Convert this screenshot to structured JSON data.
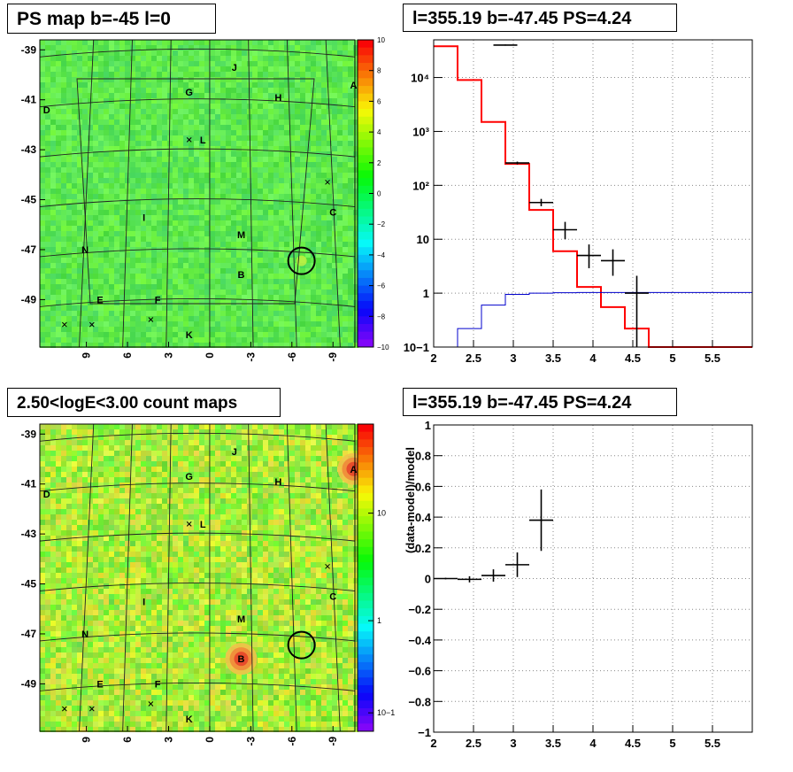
{
  "panels": {
    "ps_map_title": "PS map b=-45 l=0",
    "count_map_title": "2.50<logE<3.00 count maps",
    "spectrum_title": "l=355.19 b=-47.45 PS=4.24",
    "residual_title": "l=355.19 b=-47.45 PS=4.24"
  },
  "colors": {
    "map_background": "#5fe35a",
    "model_line": "#ff0000",
    "background_line": "#0000cc",
    "data_points": "#000000"
  },
  "chart_data": [
    {
      "type": "heatmap",
      "name": "ps_map",
      "title": "PS map b=-45 l=0",
      "x_ticks": [
        "9",
        "6",
        "3",
        "0",
        "-3",
        "-6",
        "-9"
      ],
      "y_ticks": [
        "-39",
        "-41",
        "-43",
        "-45",
        "-47",
        "-49"
      ],
      "colorbar_ticks": [
        "10",
        "8",
        "6",
        "4",
        "2",
        "0",
        "−2",
        "−4",
        "−6",
        "−8",
        "−10"
      ],
      "colorbar_range": [
        -10,
        10
      ],
      "source_labels": [
        {
          "text": "J",
          "l": -1.8,
          "b": -39.7
        },
        {
          "text": "G",
          "l": 1.5,
          "b": -40.7
        },
        {
          "text": "H",
          "l": -5.0,
          "b": -40.9
        },
        {
          "text": "A",
          "l": -10.5,
          "b": -40.4
        },
        {
          "text": "D",
          "l": 11.9,
          "b": -41.4
        },
        {
          "text": "L",
          "l": 0.5,
          "b": -42.6
        },
        {
          "text": "C",
          "l": -9.0,
          "b": -45.5
        },
        {
          "text": "I",
          "l": 4.8,
          "b": -45.7
        },
        {
          "text": "M",
          "l": -2.3,
          "b": -46.4
        },
        {
          "text": "N",
          "l": 9.1,
          "b": -47.0
        },
        {
          "text": "B",
          "l": -2.3,
          "b": -48.0
        },
        {
          "text": "E",
          "l": 8.0,
          "b": -49.0
        },
        {
          "text": "F",
          "l": 3.8,
          "b": -49.0
        },
        {
          "text": "K",
          "l": 1.5,
          "b": -50.4
        }
      ],
      "crosses": [
        {
          "l": 1.5,
          "b": -42.6
        },
        {
          "l": -8.6,
          "b": -44.3
        },
        {
          "l": 10.6,
          "b": -50.0
        },
        {
          "l": 8.6,
          "b": -50.0
        },
        {
          "l": 4.3,
          "b": -49.8
        }
      ],
      "circle": {
        "l": -6.7,
        "b": -47.45,
        "radius": 0.55
      }
    },
    {
      "type": "heatmap",
      "name": "count_map",
      "title": "2.50<logE<3.00 count maps",
      "x_ticks": [
        "9",
        "6",
        "3",
        "0",
        "-3",
        "-6",
        "-9"
      ],
      "y_ticks": [
        "-39",
        "-41",
        "-43",
        "-45",
        "-47",
        "-49"
      ],
      "colorbar_ticks": [
        "10",
        "1",
        "10−1"
      ],
      "colorbar_scale": "log",
      "source_labels": [
        {
          "text": "J",
          "l": -1.8,
          "b": -39.7
        },
        {
          "text": "G",
          "l": 1.5,
          "b": -40.7
        },
        {
          "text": "H",
          "l": -5.0,
          "b": -40.9
        },
        {
          "text": "A",
          "l": -10.5,
          "b": -40.4
        },
        {
          "text": "D",
          "l": 11.9,
          "b": -41.4
        },
        {
          "text": "L",
          "l": 0.5,
          "b": -42.6
        },
        {
          "text": "C",
          "l": -9.0,
          "b": -45.5
        },
        {
          "text": "I",
          "l": 4.8,
          "b": -45.7
        },
        {
          "text": "M",
          "l": -2.3,
          "b": -46.4
        },
        {
          "text": "N",
          "l": 9.1,
          "b": -47.0
        },
        {
          "text": "B",
          "l": -2.3,
          "b": -48.0
        },
        {
          "text": "E",
          "l": 8.0,
          "b": -49.0
        },
        {
          "text": "F",
          "l": 3.8,
          "b": -49.0
        },
        {
          "text": "K",
          "l": 1.5,
          "b": -50.4
        }
      ],
      "hot_spots": [
        {
          "label": "A",
          "l": -10.5,
          "b": -40.4
        },
        {
          "label": "B",
          "l": -2.3,
          "b": -48.0
        }
      ],
      "circle": {
        "l": -6.7,
        "b": -47.45,
        "radius": 0.55
      }
    },
    {
      "type": "line",
      "name": "spectrum",
      "title": "l=355.19 b=-47.45 PS=4.24",
      "xlim": [
        2,
        6
      ],
      "ylim": [
        0.1,
        50000
      ],
      "yscale": "log",
      "x_ticks": [
        "2",
        "2.5",
        "3",
        "3.5",
        "4",
        "4.5",
        "5",
        "5.5"
      ],
      "y_ticks": [
        "10−1",
        "1",
        "10",
        "10²",
        "10³",
        "10⁴"
      ],
      "grid": true,
      "series": [
        {
          "style": "step",
          "color": "#ff0000",
          "edges": [
            2.0,
            2.3,
            2.6,
            2.9,
            3.2,
            3.5,
            3.8,
            4.1,
            4.4,
            4.7,
            6.0
          ],
          "values": [
            38000,
            9000,
            1500,
            250,
            35,
            6,
            1.3,
            0.55,
            0.22,
            0.1
          ]
        },
        {
          "style": "step",
          "color": "#0000cc",
          "edges": [
            2.0,
            2.3,
            2.6,
            2.9,
            3.2,
            3.5,
            3.8,
            4.1,
            4.4,
            4.7,
            6.0
          ],
          "values": [
            0.05,
            0.22,
            0.6,
            0.95,
            1.0,
            1.02,
            1.03,
            1.03,
            1.03,
            1.03
          ]
        },
        {
          "style": "errorbar",
          "color": "#000000",
          "points": [
            {
              "x": 2.9,
              "xerr": 0.15,
              "y": 40000,
              "ylo": 39000,
              "yhi": 41000
            },
            {
              "x": 3.05,
              "xerr": 0.15,
              "y": 260,
              "ylo": 245,
              "yhi": 275
            },
            {
              "x": 3.35,
              "xerr": 0.15,
              "y": 48,
              "ylo": 41,
              "yhi": 56
            },
            {
              "x": 3.65,
              "xerr": 0.15,
              "y": 15,
              "ylo": 10,
              "yhi": 21
            },
            {
              "x": 3.95,
              "xerr": 0.15,
              "y": 5,
              "ylo": 2.9,
              "yhi": 8
            },
            {
              "x": 4.25,
              "xerr": 0.15,
              "y": 4,
              "ylo": 2.1,
              "yhi": 6.5
            },
            {
              "x": 4.55,
              "xerr": 0.15,
              "y": 1.0,
              "ylo": 0.1,
              "yhi": 2.1
            }
          ]
        }
      ]
    },
    {
      "type": "scatter",
      "name": "residual",
      "title": "l=355.19 b=-47.45 PS=4.24",
      "xlim": [
        2,
        6
      ],
      "ylim": [
        -1,
        1
      ],
      "ylabel": "(data-model)/model",
      "x_ticks": [
        "2",
        "2.5",
        "3",
        "3.5",
        "4",
        "4.5",
        "5",
        "5.5"
      ],
      "y_ticks": [
        "1",
        "0.8",
        "0.6",
        "0.4",
        "0.2",
        "0",
        "−0.2",
        "−0.4",
        "−0.6",
        "−0.8",
        "−1"
      ],
      "grid": true,
      "points": [
        {
          "x": 2.15,
          "xerr": 0.15,
          "y": 0.0,
          "yerr": 0.005
        },
        {
          "x": 2.45,
          "xerr": 0.15,
          "y": -0.005,
          "yerr": 0.02
        },
        {
          "x": 2.75,
          "xerr": 0.15,
          "y": 0.02,
          "yerr": 0.04
        },
        {
          "x": 3.05,
          "xerr": 0.15,
          "y": 0.09,
          "yerr": 0.08
        },
        {
          "x": 3.35,
          "xerr": 0.15,
          "y": 0.38,
          "yerr": 0.2
        }
      ]
    }
  ]
}
